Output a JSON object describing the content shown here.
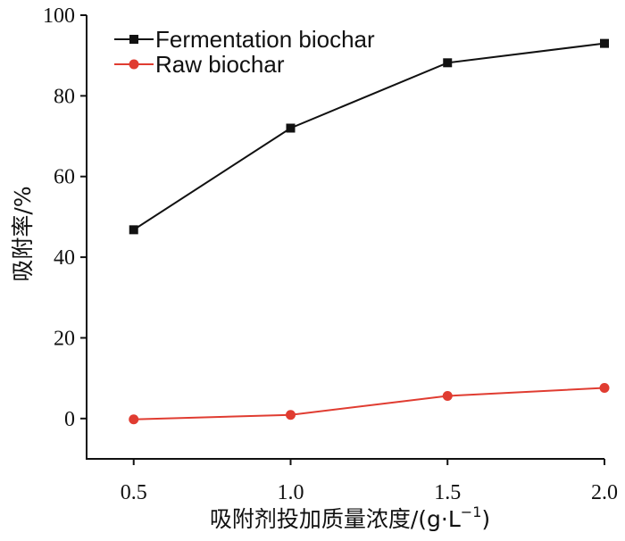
{
  "chart_data": {
    "type": "line",
    "title": "",
    "xlabel": "吸附剂投加质量浓度/(g·L⁻¹)",
    "xlabel_main": "吸附剂投加质量浓度/(g·L",
    "xlabel_sup": "−1",
    "xlabel_close": ")",
    "ylabel": "吸附率/%",
    "x": [
      0.5,
      1.0,
      1.5,
      2.0
    ],
    "xticks": [
      "0.5",
      "1.0",
      "1.5",
      "2.0"
    ],
    "yticks": [
      "0",
      "20",
      "40",
      "60",
      "80",
      "100"
    ],
    "xlim": [
      0.35,
      2.0
    ],
    "ylim": [
      -10,
      100
    ],
    "grid": false,
    "legend_position": "top-left",
    "series": [
      {
        "name": "Fermentation biochar",
        "values": [
          46.8,
          72.0,
          88.2,
          93.0
        ],
        "color": "#111111",
        "marker": "square"
      },
      {
        "name": "Raw biochar",
        "values": [
          -0.2,
          0.9,
          5.6,
          7.6
        ],
        "color": "#e03c31",
        "marker": "circle"
      }
    ]
  }
}
